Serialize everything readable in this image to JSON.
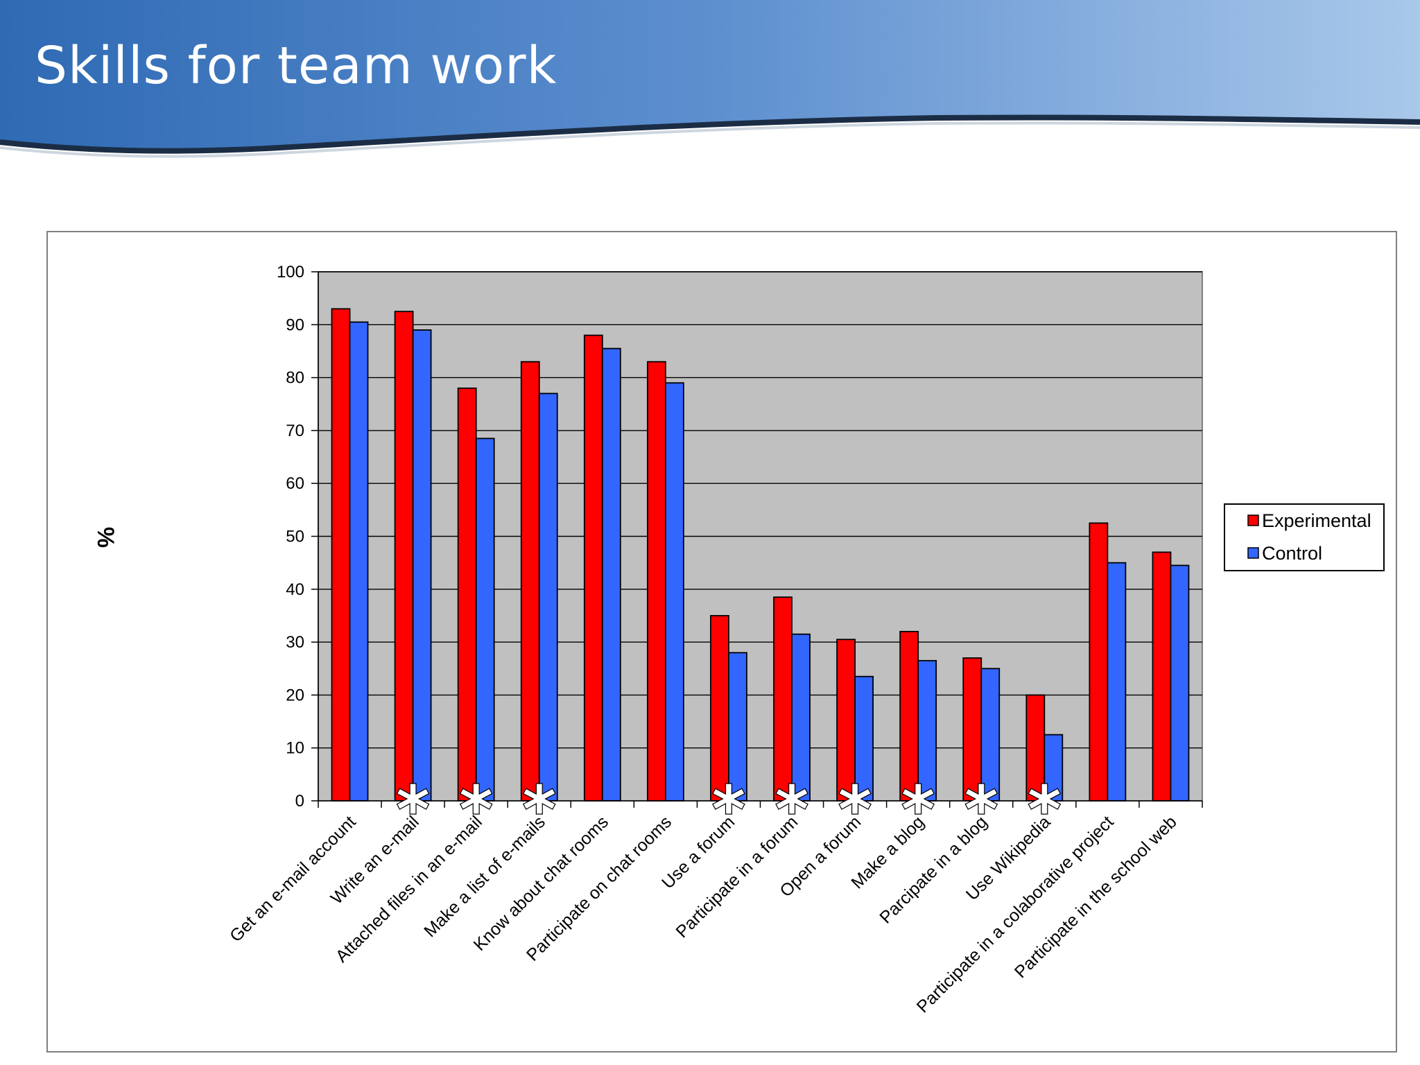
{
  "slide": {
    "title": "Skills for team work"
  },
  "colors": {
    "experimental": "#ff0000",
    "control": "#3366ff",
    "plot_background": "#c0c0c0",
    "banner": "#3c78c0"
  },
  "chart_data": {
    "type": "bar",
    "title": "",
    "xlabel": "",
    "ylabel": "%",
    "ylim": [
      0,
      100
    ],
    "yticks": [
      0,
      10,
      20,
      30,
      40,
      50,
      60,
      70,
      80,
      90,
      100
    ],
    "grid": true,
    "legend_position": "right",
    "categories": [
      "Get an e-mail account",
      "Write an e-mail",
      "Attached files in an e-mail",
      "Make a list of e-mails",
      "Know about chat rooms",
      "Participate on chat rooms",
      "Use a forum",
      "Participate in a forum",
      "Open a forum",
      "Make a blog",
      "Parcipate in a blog",
      "Use Wikipedia",
      "Participate in a colaborative project",
      "Participate in the school web"
    ],
    "series": [
      {
        "name": "Experimental",
        "values": [
          93,
          92.5,
          78,
          83,
          88,
          83,
          35,
          38.5,
          30.5,
          32,
          27,
          20,
          52.5,
          47
        ]
      },
      {
        "name": "Control",
        "values": [
          90.5,
          89,
          68.5,
          77,
          85.5,
          79,
          28,
          31.5,
          23.5,
          26.5,
          25,
          12.5,
          45,
          44.5
        ]
      }
    ],
    "annotations": {
      "significance_marker": "*",
      "marked_categories": [
        1,
        2,
        3,
        6,
        7,
        8,
        9,
        10,
        11
      ]
    }
  }
}
